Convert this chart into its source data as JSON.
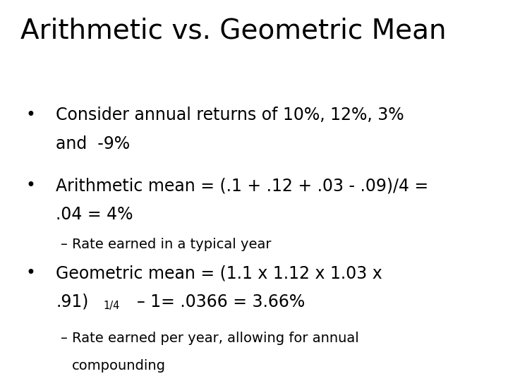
{
  "title": "Arithmetic vs. Geometric Mean",
  "background_color": "#ffffff",
  "title_fontsize": 28,
  "bullet1_line1": "Consider annual returns of 10%, 12%, 3%",
  "bullet1_line2": "and  -9%",
  "bullet2_line1": "Arithmetic mean = (.1 + .12 + .03 - .09)/4 =",
  "bullet2_line2": ".04 = 4%",
  "sub1": "– Rate earned in a typical year",
  "bullet3_line1": "Geometric mean = (1.1 x 1.12 x 1.03 x",
  "bullet3_line2_normal": ".91)",
  "bullet3_line2_super": "1/4",
  "bullet3_line2_rest": "    – 1= .0366 = 3.66%",
  "sub2_line1": "– Rate earned per year, allowing for annual",
  "sub2_line2": "compounding",
  "font_family": "DejaVu Sans",
  "bullet_fontsize": 17,
  "sub_fontsize": 14,
  "text_color": "#000000"
}
